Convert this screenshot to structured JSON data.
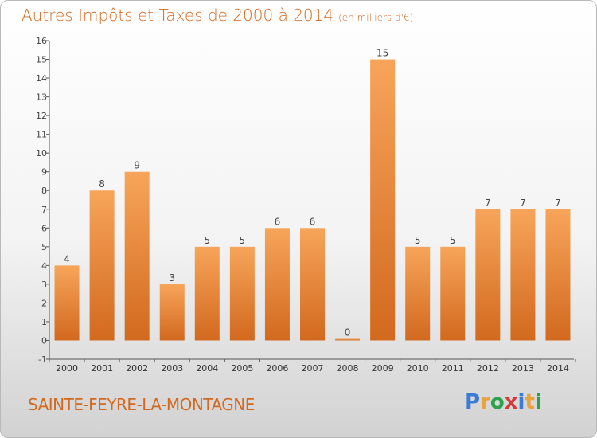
{
  "header": {
    "title": "Autres Impôts et Taxes de 2000 à 2014",
    "unit": "(en milliers d'€)"
  },
  "footer": {
    "commune": "SAINTE-FEYRE-LA-MONTAGNE",
    "logo_letters": [
      "P",
      "r",
      "o",
      "x",
      "i",
      "t",
      "i"
    ],
    "logo_colors": [
      "#3a7bd5",
      "#e8a33d",
      "#2aa14a",
      "#d53a3a",
      "#3a7bd5",
      "#e8a33d",
      "#2aa14a"
    ]
  },
  "colors": {
    "title": "#d2691e",
    "bar_top": "#f7a55a",
    "bar_bottom": "#d2691e",
    "axis": "#555555"
  },
  "chart_data": {
    "type": "bar",
    "title": "Autres Impôts et Taxes de 2000 à 2014",
    "subtitle": "(en milliers d'€)",
    "xlabel": "",
    "ylabel": "",
    "categories": [
      "2000",
      "2001",
      "2002",
      "2003",
      "2004",
      "2005",
      "2006",
      "2007",
      "2008",
      "2009",
      "2010",
      "2011",
      "2012",
      "2013",
      "2014"
    ],
    "values": [
      4,
      8,
      9,
      3,
      5,
      5,
      6,
      6,
      0,
      15,
      5,
      5,
      7,
      7,
      7
    ],
    "ylim": [
      -1,
      16
    ],
    "yticks": [
      -1,
      0,
      1,
      2,
      3,
      4,
      5,
      6,
      7,
      8,
      9,
      10,
      11,
      12,
      13,
      14,
      15,
      16
    ],
    "grid": false,
    "legend": "none"
  }
}
